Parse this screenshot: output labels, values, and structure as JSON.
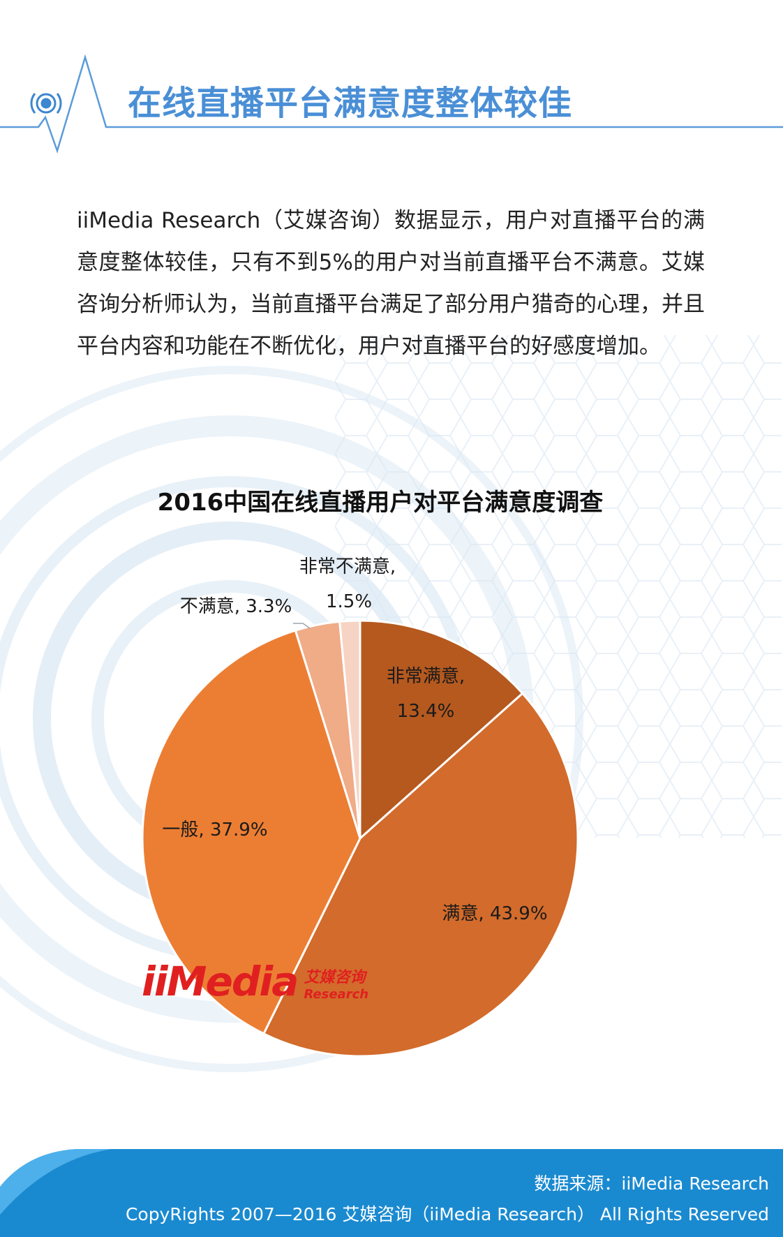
{
  "header": {
    "title": "在线直播平台满意度整体较佳"
  },
  "body_text": "iiMedia Research（艾媒咨询）数据显示，用户对直播平台的满意度整体较佳，只有不到5%的用户对当前直播平台不满意。艾媒咨询分析师认为，当前直播平台满足了部分用户猎奇的心理，并且平台内容和功能在不断优化，用户对直播平台的好感度增加。",
  "logo": {
    "main": "iiMedia",
    "cn": "艾媒咨询",
    "en": "Research"
  },
  "chart_data": {
    "type": "pie",
    "title": "2016中国在线直播用户对平台满意度调查",
    "unit": "%",
    "slices": [
      {
        "label": "非常满意",
        "value": 13.4,
        "display": "13.4%",
        "color": "#b5591f"
      },
      {
        "label": "满意",
        "value": 43.9,
        "display": "43.9%",
        "color": "#d26b2b"
      },
      {
        "label": "一般",
        "value": 37.9,
        "display": "37.9%",
        "color": "#ec7e33"
      },
      {
        "label": "不满意",
        "value": 3.3,
        "display": "3.3%",
        "color": "#f0ab87"
      },
      {
        "label": "非常不满意",
        "value": 1.5,
        "display": "1.5%",
        "color": "#f6d3c3"
      }
    ]
  },
  "footer": {
    "source": "数据来源：iiMedia Research",
    "copyright": "CopyRights 2007—2016 艾媒咨询（iiMedia Research） All Rights Reserved"
  }
}
